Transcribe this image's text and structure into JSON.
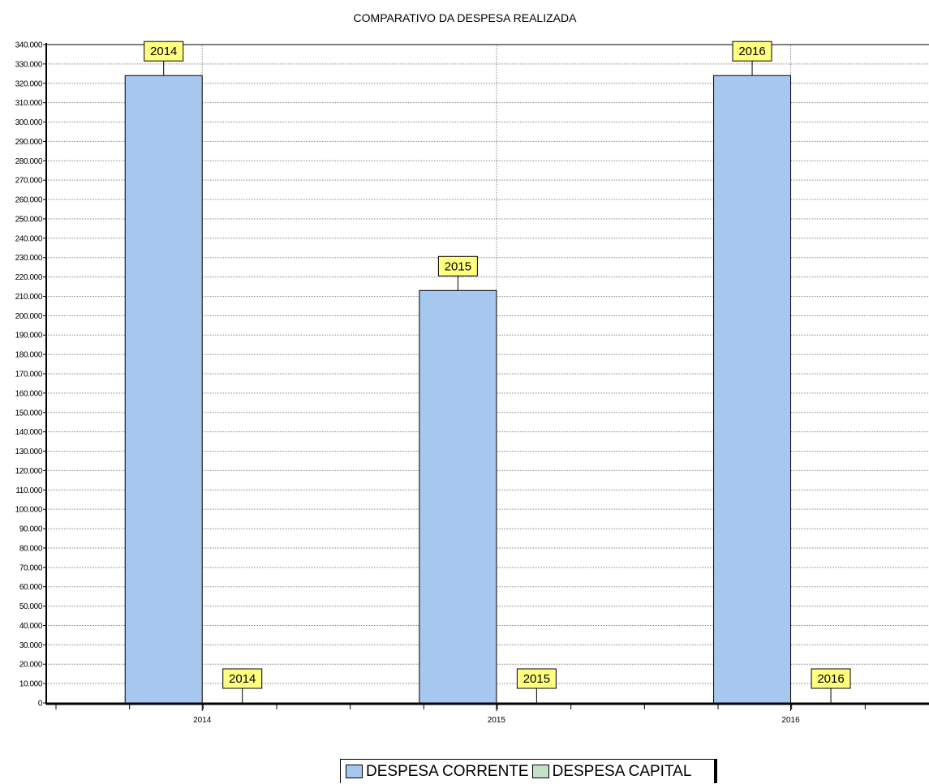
{
  "chart_data": {
    "type": "bar",
    "title": "COMPARATIVO DA DESPESA REALIZADA",
    "categories": [
      "2014",
      "2015",
      "2016"
    ],
    "series": [
      {
        "name": "DESPESA CORRENTE",
        "color": "#a6c8ee",
        "values": [
          324000,
          213000,
          324000
        ],
        "labels": [
          "2014",
          "2015",
          "2016"
        ]
      },
      {
        "name": "DESPESA CAPITAL",
        "color": "#c5e1c5",
        "values": [
          0,
          0,
          0
        ],
        "labels": [
          "2014",
          "2015",
          "2016"
        ]
      }
    ],
    "ylim": [
      0,
      340000
    ],
    "ytick_step": 10000,
    "ytick_labels": [
      "0",
      "10.000",
      "20.000",
      "30.000",
      "40.000",
      "50.000",
      "60.000",
      "70.000",
      "80.000",
      "90.000",
      "100.000",
      "110.000",
      "120.000",
      "130.000",
      "140.000",
      "150.000",
      "160.000",
      "170.000",
      "180.000",
      "190.000",
      "200.000",
      "210.000",
      "220.000",
      "230.000",
      "240.000",
      "250.000",
      "260.000",
      "270.000",
      "280.000",
      "290.000",
      "300.000",
      "310.000",
      "320.000",
      "330.000",
      "340.000"
    ],
    "grid": true,
    "data_label_color": "#ffff80",
    "legend_position": "bottom-center"
  }
}
